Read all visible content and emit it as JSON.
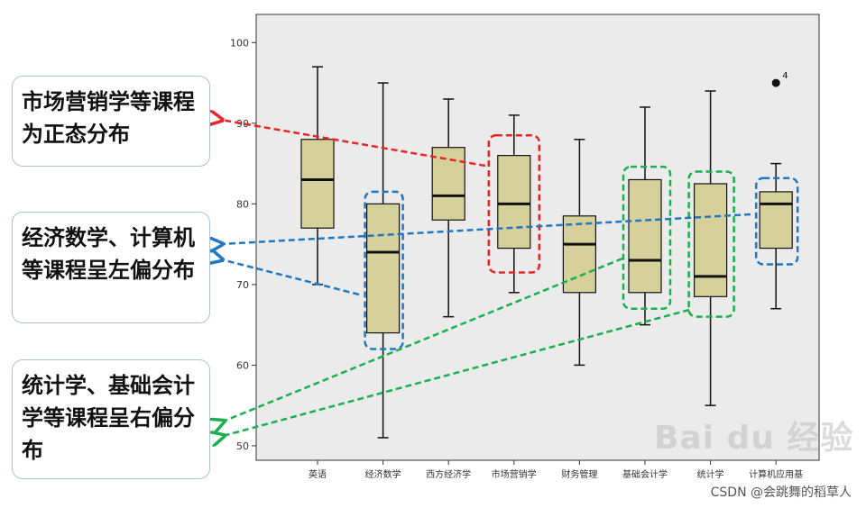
{
  "callouts": [
    {
      "text": "市场营销学等课程为正态分布"
    },
    {
      "text": "经济数学、计算机等课程呈左偏分布"
    },
    {
      "text": "统计学、基础会计学等课程呈右偏分布"
    }
  ],
  "watermark": {
    "text": "Bai du 经验"
  },
  "credit": {
    "text": "CSDN @会跳舞的稻草人"
  },
  "colors": {
    "plot_bg": "#ebebeb",
    "box_fill": "#d6d09b",
    "red": "#e8262a",
    "blue": "#1f78c1",
    "green": "#1ab04d"
  },
  "chart_data": {
    "type": "boxplot",
    "ylim": [
      48,
      103
    ],
    "yticks": [
      50,
      60,
      70,
      80,
      90,
      100
    ],
    "categories": [
      "英语",
      "经济数学",
      "西方经济学",
      "市场营销学",
      "财务管理",
      "基础会计学",
      "统计学",
      "计算机应用基"
    ],
    "boxes": [
      {
        "min": 70,
        "q1": 77,
        "median": 83,
        "q3": 88,
        "max": 97
      },
      {
        "min": 51,
        "q1": 64,
        "median": 74,
        "q3": 80,
        "max": 95
      },
      {
        "min": 66,
        "q1": 78,
        "median": 81,
        "q3": 87,
        "max": 93
      },
      {
        "min": 69,
        "q1": 74.5,
        "median": 80,
        "q3": 86,
        "max": 91
      },
      {
        "min": 60,
        "q1": 69,
        "median": 75,
        "q3": 78.5,
        "max": 88
      },
      {
        "min": 65,
        "q1": 69,
        "median": 73,
        "q3": 83,
        "max": 92
      },
      {
        "min": 55,
        "q1": 68.5,
        "median": 71,
        "q3": 82.5,
        "max": 94
      },
      {
        "min": 67,
        "q1": 74.5,
        "median": 80,
        "q3": 81.5,
        "max": 85,
        "outliers": [
          {
            "value": 95,
            "label": "4"
          }
        ]
      }
    ],
    "highlights": [
      {
        "category": "市场营销学",
        "color": "red",
        "callout": 0
      },
      {
        "category": "经济数学",
        "color": "blue",
        "callout": 1
      },
      {
        "category": "计算机应用基",
        "color": "blue",
        "callout": 1
      },
      {
        "category": "基础会计学",
        "color": "green",
        "callout": 2
      },
      {
        "category": "统计学",
        "color": "green",
        "callout": 2
      }
    ]
  }
}
